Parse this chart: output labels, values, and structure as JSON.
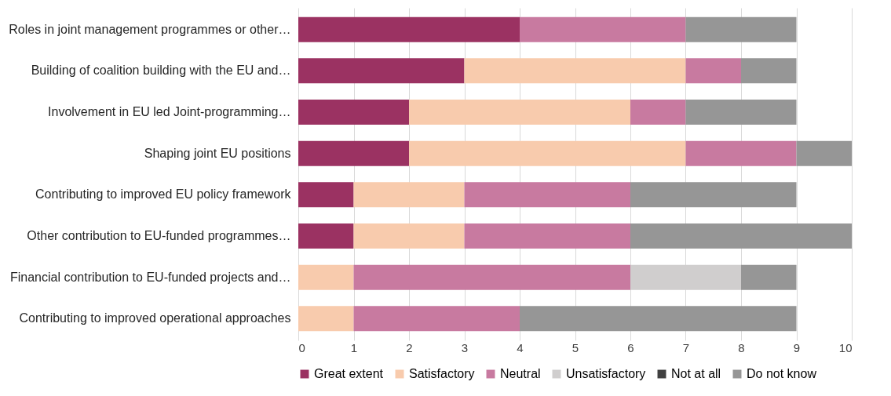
{
  "chart_data": {
    "type": "bar",
    "orientation": "horizontal",
    "stacked": true,
    "categories": [
      "Roles in joint management programmes or other…",
      "Building of coalition building with the EU and…",
      "Involvement in EU led Joint-programming…",
      "Shaping joint EU positions",
      "Contributing to improved EU policy framework",
      "Other contribution to EU-funded programmes…",
      "Financial contribution to EU-funded projects and…",
      "Contributing to improved operational approaches"
    ],
    "series": [
      {
        "name": "Great extent",
        "color": "#9b3262",
        "values": [
          4,
          3,
          2,
          2,
          1,
          1,
          0,
          0
        ]
      },
      {
        "name": "Satisfactory",
        "color": "#f8cbad",
        "values": [
          0,
          4,
          4,
          5,
          2,
          2,
          1,
          1
        ]
      },
      {
        "name": "Neutral",
        "color": "#c87aa0",
        "values": [
          3,
          1,
          1,
          2,
          3,
          3,
          5,
          3
        ]
      },
      {
        "name": "Unsatisfactory",
        "color": "#d0cece",
        "values": [
          0,
          0,
          0,
          0,
          0,
          0,
          2,
          0
        ]
      },
      {
        "name": "Not at all",
        "color": "#404040",
        "values": [
          0,
          0,
          0,
          0,
          0,
          0,
          0,
          0
        ]
      },
      {
        "name": "Do not know",
        "color": "#969696",
        "values": [
          2,
          1,
          2,
          1,
          3,
          4,
          1,
          5
        ]
      }
    ],
    "xlim": [
      0,
      10
    ],
    "xticks": [
      0,
      1,
      2,
      3,
      4,
      5,
      6,
      7,
      8,
      9,
      10
    ],
    "grid": "x",
    "legend": "bottom"
  }
}
